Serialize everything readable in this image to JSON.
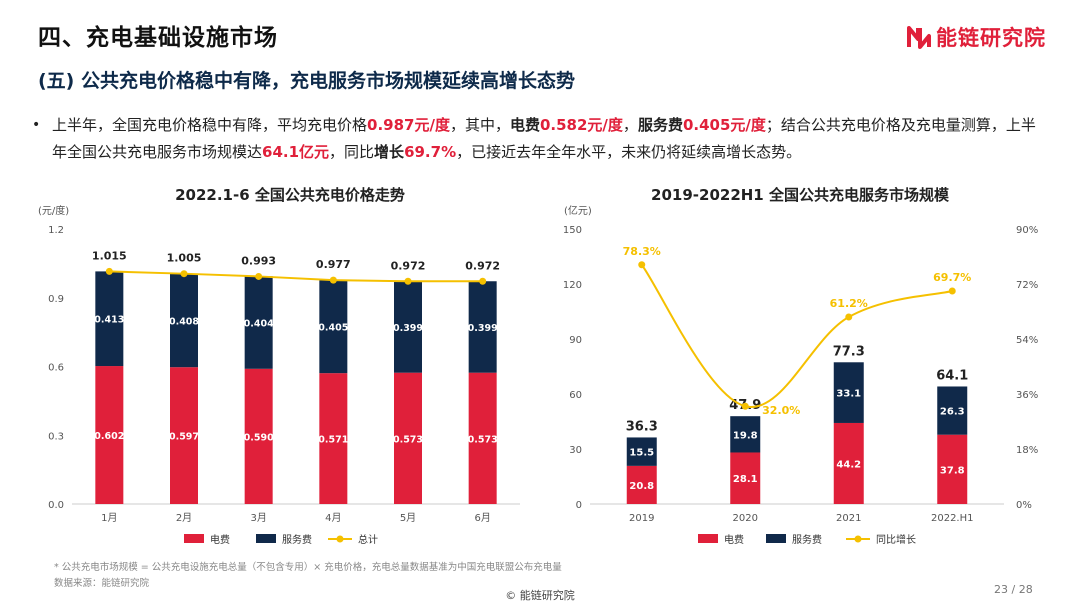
{
  "header": {
    "section_title": "四、充电基础设施市场",
    "subtitle": "(五) 公共充电价格稳中有降，充电服务市场规模延续高增长态势",
    "brand": "能链研究院"
  },
  "bullet": {
    "seg1": "上半年，全国充电价格稳中有降，平均充电价格",
    "avg_price": "0.987元/度",
    "seg2": "，其中，",
    "elec_label": "电费",
    "elec_value": "0.582元/度",
    "seg3": "，",
    "service_label": "服务费",
    "service_value": "0.405元/度",
    "seg4": "；结合公共充电价格及充电量测算，上半年全国公共充电服务市场规模达",
    "market_size": "64.1亿元",
    "seg5": "，同比",
    "growth_label": "增长",
    "growth_value": "69.7%",
    "seg6": "，已接近去年全年水平，未来仍将延续高增长态势。"
  },
  "chart_data": [
    {
      "type": "bar",
      "title": "2022.1-6 全国公共充电价格走势",
      "ylabel": "(元/度)",
      "ylim": [
        0,
        1.2
      ],
      "yticks": [
        "0.0",
        "0.3",
        "0.6",
        "0.9",
        "1.2"
      ],
      "categories": [
        "1月",
        "2月",
        "3月",
        "4月",
        "5月",
        "6月"
      ],
      "series": [
        {
          "name": "电费",
          "kind": "stacked-bar",
          "color": "#e0203a",
          "values": [
            0.602,
            0.597,
            0.59,
            0.571,
            0.573,
            0.573
          ],
          "labels": [
            "0.602",
            "0.597",
            "0.590",
            "0.571",
            "0.573",
            "0.573"
          ]
        },
        {
          "name": "服务费",
          "kind": "stacked-bar",
          "color": "#10294a",
          "values": [
            0.413,
            0.408,
            0.404,
            0.405,
            0.399,
            0.399
          ],
          "labels": [
            "0.413",
            "0.408",
            "0.404",
            "0.405",
            "0.399",
            "0.399"
          ]
        },
        {
          "name": "总计",
          "kind": "line",
          "color": "#f5c000",
          "values": [
            1.015,
            1.005,
            0.993,
            0.977,
            0.972,
            0.972
          ],
          "labels": [
            "1.015",
            "1.005",
            "0.993",
            "0.977",
            "0.972",
            "0.972"
          ]
        }
      ],
      "grid": false,
      "legend": "bottom"
    },
    {
      "type": "bar",
      "title": "2019-2022H1 全国公共充电服务市场规模",
      "ylabel": "(亿元)",
      "ylim": [
        0,
        150
      ],
      "yticks": [
        "0",
        "30",
        "60",
        "90",
        "120",
        "150"
      ],
      "y2lim": [
        0,
        90
      ],
      "y2ticks": [
        "0%",
        "18%",
        "36%",
        "54%",
        "72%",
        "90%"
      ],
      "categories": [
        "2019",
        "2020",
        "2021",
        "2022.H1"
      ],
      "series": [
        {
          "name": "电费",
          "kind": "stacked-bar",
          "color": "#e0203a",
          "values": [
            20.8,
            28.1,
            44.2,
            37.8
          ],
          "labels": [
            "20.8",
            "28.1",
            "44.2",
            "37.8"
          ]
        },
        {
          "name": "服务费",
          "kind": "stacked-bar",
          "color": "#10294a",
          "values": [
            15.5,
            19.8,
            33.1,
            26.3
          ],
          "labels": [
            "15.5",
            "19.8",
            "33.1",
            "26.3"
          ]
        },
        {
          "name": "同比增长",
          "kind": "smooth-line",
          "axis": "right",
          "color": "#f5c000",
          "values": [
            78.3,
            32.0,
            61.2,
            69.7
          ],
          "labels": [
            "78.3%",
            "32.0%",
            "61.2%",
            "69.7%"
          ]
        }
      ],
      "totals": [
        "36.3",
        "47.9",
        "77.3",
        "64.1"
      ],
      "grid": false,
      "legend": "bottom"
    }
  ],
  "footnote": {
    "note": "* 公共充电市场规模 = 公共充电设施充电总量（不包含专用）× 充电价格，充电总量数据基准为中国充电联盟公布充电量",
    "source": "数据来源：能链研究院"
  },
  "footer": {
    "copyright": "© 能链研究院",
    "page": "23 / 28"
  },
  "colors": {
    "accent": "#e0203a",
    "navy": "#10294a",
    "line": "#f5c000"
  }
}
